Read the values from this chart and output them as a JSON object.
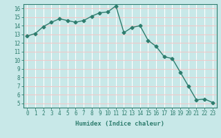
{
  "x": [
    0,
    1,
    2,
    3,
    4,
    5,
    6,
    7,
    8,
    9,
    10,
    11,
    12,
    13,
    14,
    15,
    16,
    17,
    18,
    19,
    20,
    21,
    22,
    23
  ],
  "y": [
    12.8,
    13.1,
    13.9,
    14.4,
    14.8,
    14.6,
    14.4,
    14.6,
    15.1,
    15.5,
    15.6,
    16.3,
    13.2,
    13.8,
    14.0,
    12.3,
    11.6,
    10.4,
    10.2,
    8.6,
    7.0,
    5.4,
    5.5,
    5.1
  ],
  "line_color": "#2e7d6e",
  "marker": "D",
  "marker_size": 2.5,
  "bg_color": "#c8e8e8",
  "grid_color": "#f0c8c8",
  "xlabel": "Humidex (Indice chaleur)",
  "xlim": [
    -0.5,
    23.5
  ],
  "ylim": [
    4.5,
    16.5
  ],
  "yticks": [
    5,
    6,
    7,
    8,
    9,
    10,
    11,
    12,
    13,
    14,
    15,
    16
  ],
  "xticks": [
    0,
    1,
    2,
    3,
    4,
    5,
    6,
    7,
    8,
    9,
    10,
    11,
    12,
    13,
    14,
    15,
    16,
    17,
    18,
    19,
    20,
    21,
    22,
    23
  ],
  "tick_color": "#2e7d6e",
  "label_color": "#2e7d6e",
  "spine_color": "#2e7d6e",
  "tick_fontsize": 5.5,
  "xlabel_fontsize": 6.5
}
